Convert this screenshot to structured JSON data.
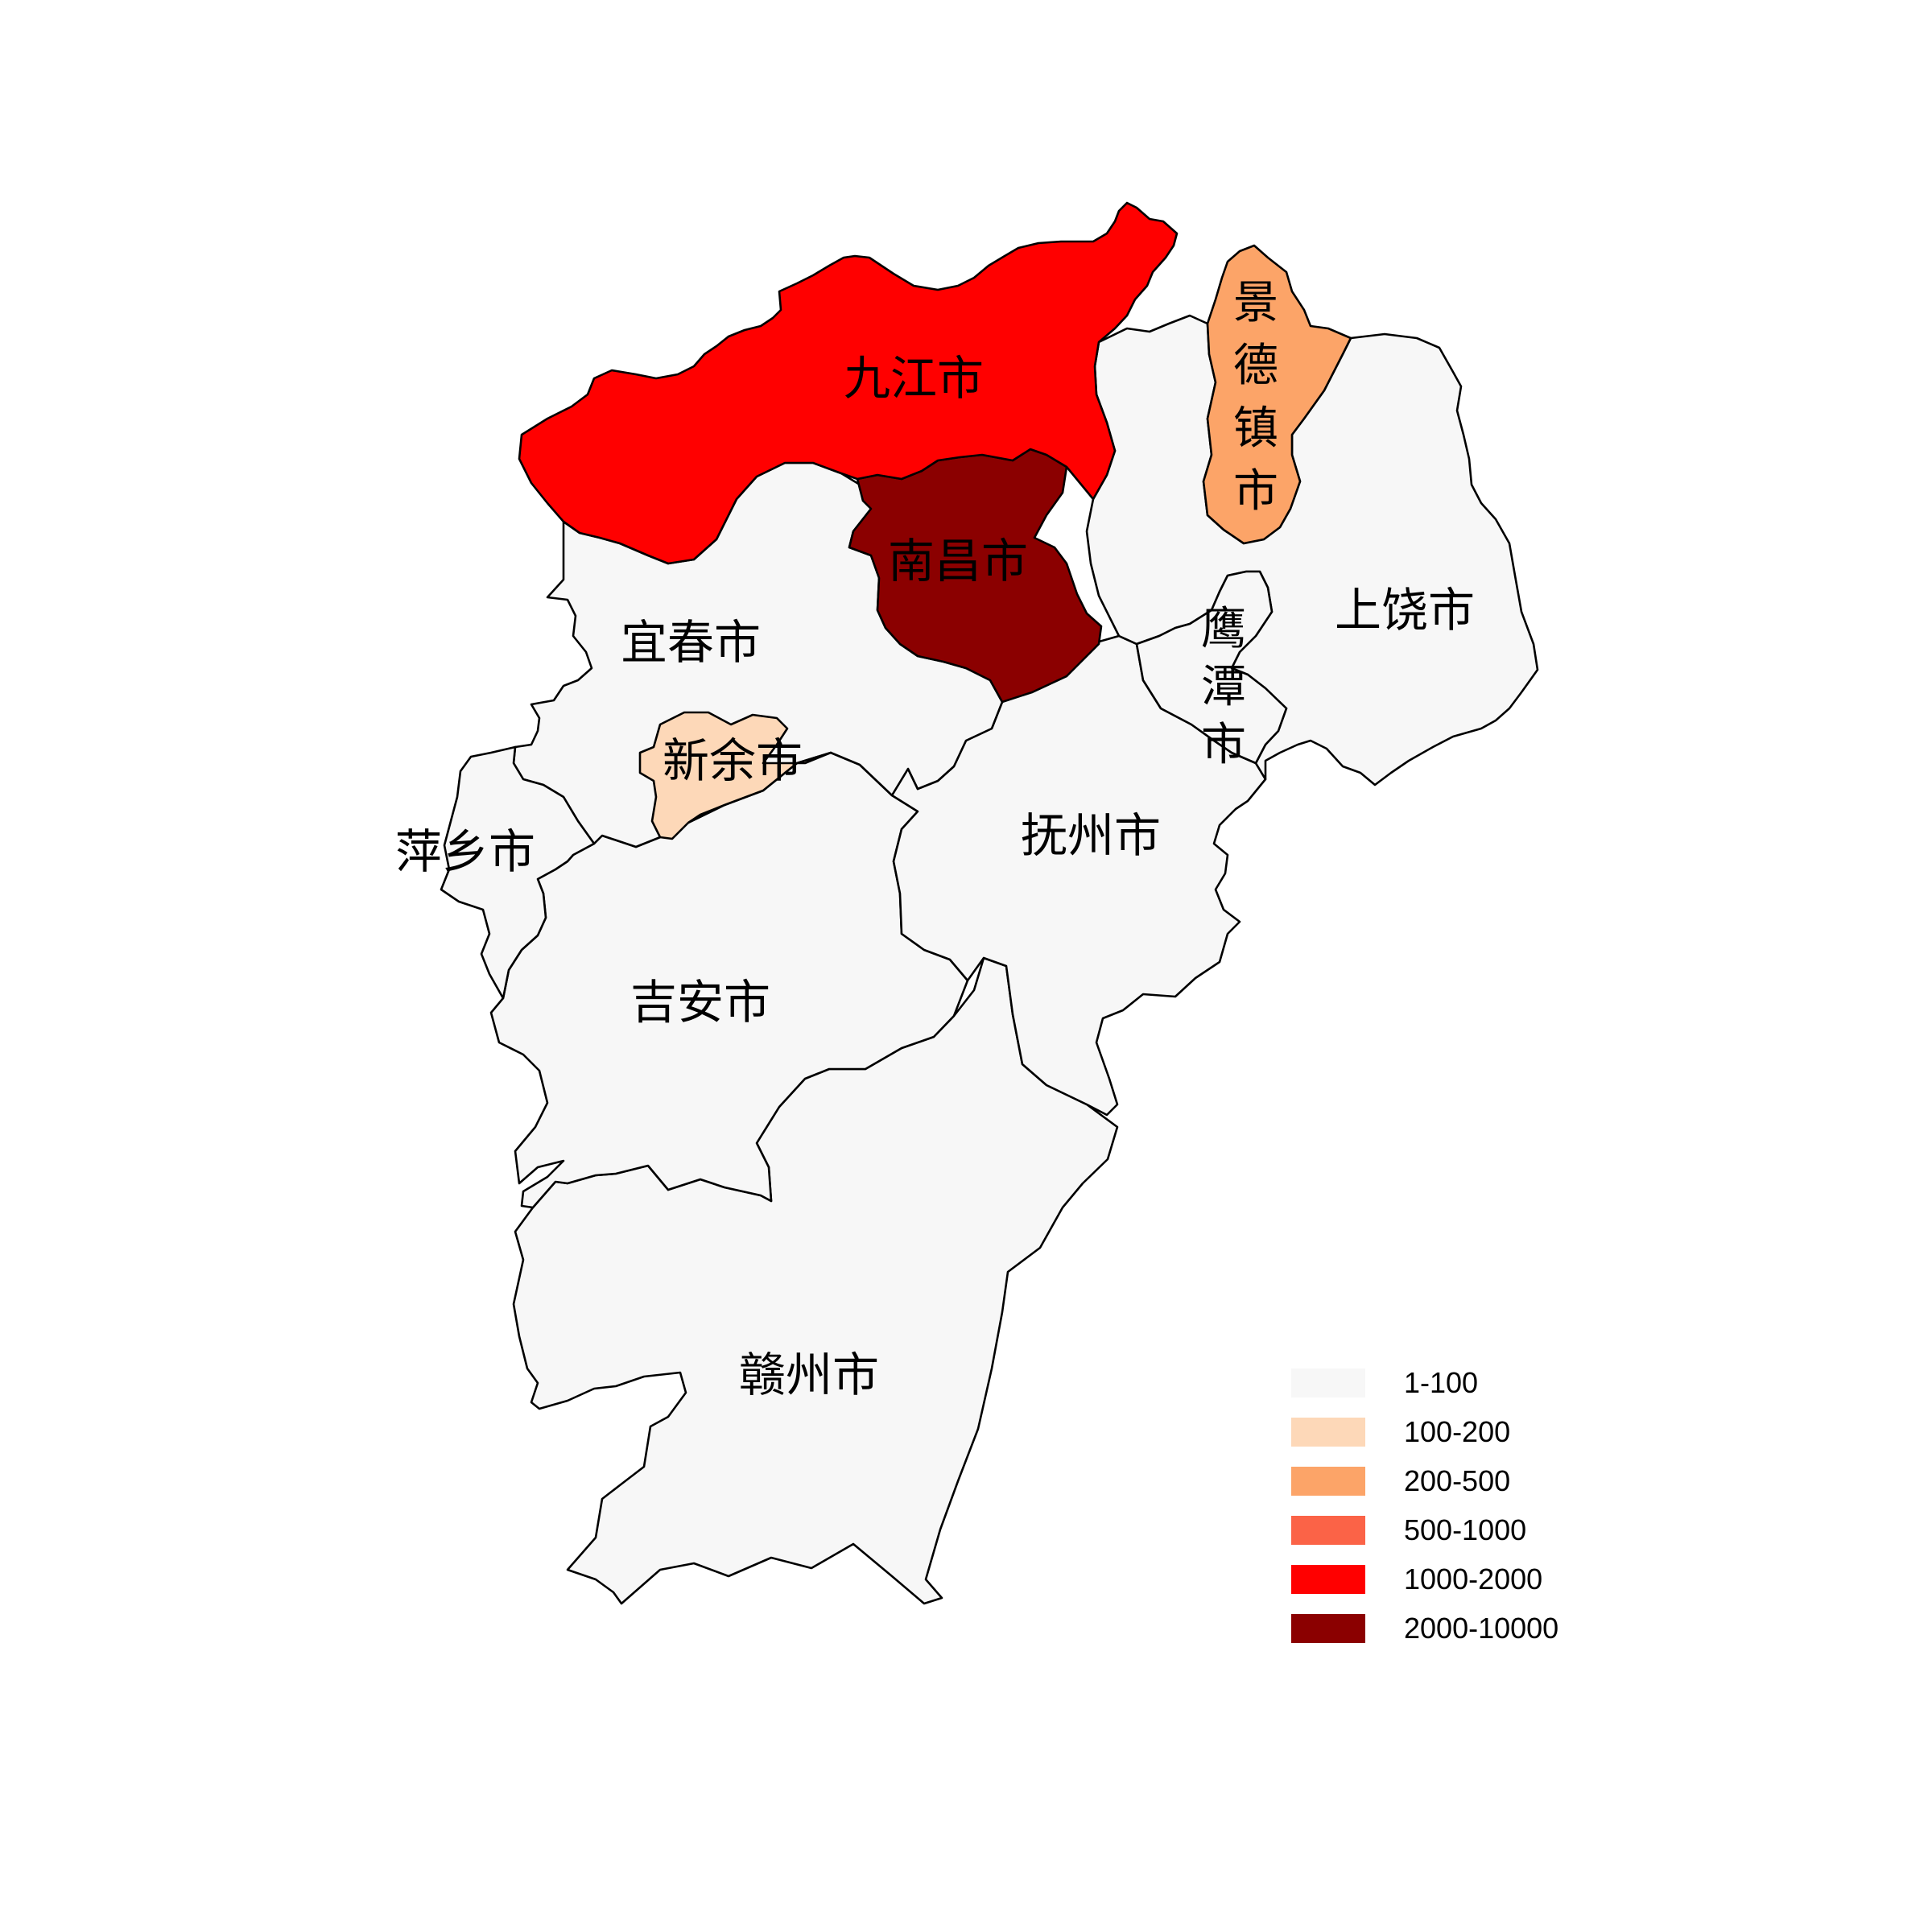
{
  "regions": {
    "jiujiang": {
      "name": "九江市",
      "color": "#ff0000"
    },
    "nanchang": {
      "name": "南昌市",
      "color": "#8b0000"
    },
    "jingdezhen": {
      "name": "景德镇市",
      "chars": [
        "景",
        "德",
        "镇",
        "市"
      ],
      "color": "#fca468"
    },
    "shangrao": {
      "name": "上饶市",
      "color": "#f7f7f7"
    },
    "yingtan": {
      "name": "鹰潭市",
      "chars": [
        "鹰",
        "潭",
        "市"
      ],
      "color": "#f7f7f7"
    },
    "yichun": {
      "name": "宜春市",
      "color": "#f7f7f7"
    },
    "xinyu": {
      "name": "新余市",
      "color": "#fdd8b8"
    },
    "pingxiang": {
      "name": "萍乡市",
      "color": "#f7f7f7"
    },
    "fuzhou": {
      "name": "抚州市",
      "color": "#f7f7f7"
    },
    "jian": {
      "name": "吉安市",
      "color": "#f7f7f7"
    },
    "ganzhou": {
      "name": "赣州市",
      "color": "#f7f7f7"
    }
  },
  "legend": {
    "items": [
      {
        "label": "1-100",
        "color": "#f7f7f7"
      },
      {
        "label": "100-200",
        "color": "#fdd8b8"
      },
      {
        "label": "200-500",
        "color": "#fca468"
      },
      {
        "label": "500-1000",
        "color": "#fb6347"
      },
      {
        "label": "1000-2000",
        "color": "#ff0000"
      },
      {
        "label": "2000-10000",
        "color": "#8b0000"
      }
    ]
  }
}
